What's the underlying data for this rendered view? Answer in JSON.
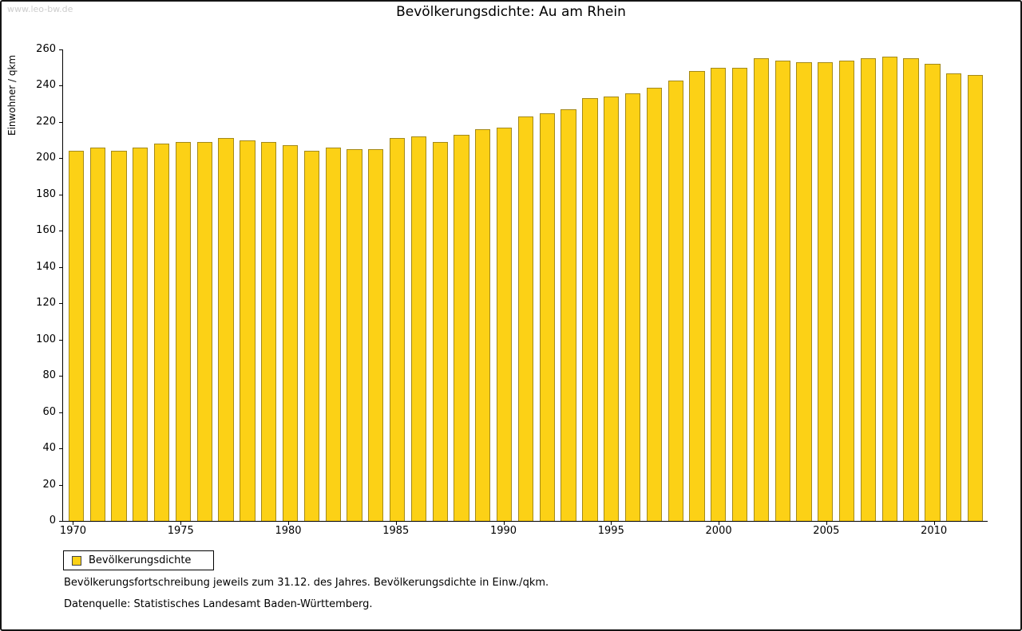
{
  "watermark": "www.leo-bw.de",
  "title": "Bevölkerungsdichte: Au am Rhein",
  "ylabel": "Einwohner / qkm",
  "legend": {
    "label": "Bevölkerungsdichte"
  },
  "footnote1": "Bevölkerungsfortschreibung jeweils zum 31.12. des Jahres. Bevölkerungsdichte in Einw./qkm.",
  "footnote2": "Datenquelle: Statistisches Landesamt Baden-Württemberg.",
  "colors": {
    "bar_fill": "#FCD116",
    "bar_edge": "#A3891A",
    "axis": "#000000",
    "watermark": "#CDCDCD"
  },
  "chart_data": {
    "type": "bar",
    "title": "Bevölkerungsdichte: Au am Rhein",
    "xlabel": "",
    "ylabel": "Einwohner / qkm",
    "ylim": [
      0,
      260
    ],
    "ytick_step": 20,
    "grid": false,
    "legend": [
      "Bevölkerungsdichte"
    ],
    "legend_position": "bottom-left",
    "categories": [
      "1970",
      "1971",
      "1972",
      "1973",
      "1974",
      "1975",
      "1976",
      "1977",
      "1978",
      "1979",
      "1980",
      "1981",
      "1982",
      "1983",
      "1984",
      "1985",
      "1986",
      "1987",
      "1988",
      "1989",
      "1990",
      "1991",
      "1992",
      "1993",
      "1994",
      "1995",
      "1996",
      "1997",
      "1998",
      "1999",
      "2000",
      "2001",
      "2002",
      "2003",
      "2004",
      "2005",
      "2006",
      "2007",
      "2008",
      "2009",
      "2010",
      "2011",
      "2012"
    ],
    "values": [
      204,
      206,
      204,
      206,
      208,
      209,
      209,
      211,
      210,
      209,
      207,
      204,
      206,
      205,
      205,
      211,
      212,
      209,
      213,
      216,
      217,
      223,
      225,
      227,
      233,
      234,
      236,
      239,
      243,
      248,
      250,
      250,
      255,
      254,
      253,
      253,
      254,
      255,
      256,
      255,
      252,
      247,
      246
    ],
    "xtick_labels": [
      "1970",
      "1975",
      "1980",
      "1985",
      "1990",
      "1995",
      "2000",
      "2005",
      "2010"
    ]
  }
}
